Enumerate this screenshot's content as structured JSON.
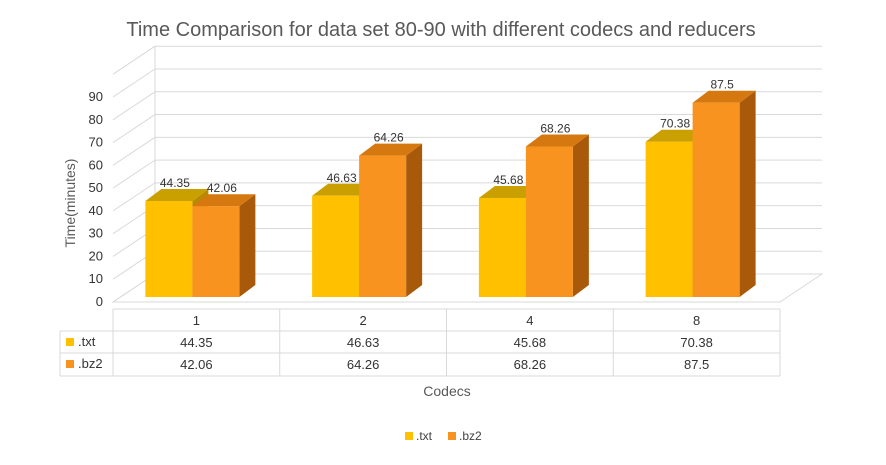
{
  "chart_data": {
    "type": "bar",
    "title": "Time Comparison for data set 80-90 with different codecs and reducers",
    "xlabel": "Codecs",
    "ylabel": "Time(minutes)",
    "categories": [
      "1",
      "2",
      "4",
      "8"
    ],
    "y_ticks": [
      "0",
      "10",
      "20",
      "30",
      "40",
      "50",
      "60",
      "70",
      "80",
      "90"
    ],
    "ylim": [
      0,
      100
    ],
    "grid": true,
    "legend_position": "bottom",
    "has_data_table": true,
    "style": "3d-clustered-column",
    "series": [
      {
        "name": ".txt",
        "values": [
          44.35,
          46.63,
          45.68,
          70.38
        ],
        "labels": [
          "44.35",
          "46.63",
          "45.68",
          "70.38"
        ],
        "color": "#FFC000",
        "top_color": "#C9A000",
        "side_color": "#B88A00"
      },
      {
        "name": ".bz2",
        "values": [
          42.06,
          64.26,
          68.26,
          87.5
        ],
        "labels": [
          "42.06",
          "64.26",
          "68.26",
          "87.5"
        ],
        "color": "#F7931E",
        "top_color": "#D4780F",
        "side_color": "#A85A0A"
      }
    ]
  }
}
